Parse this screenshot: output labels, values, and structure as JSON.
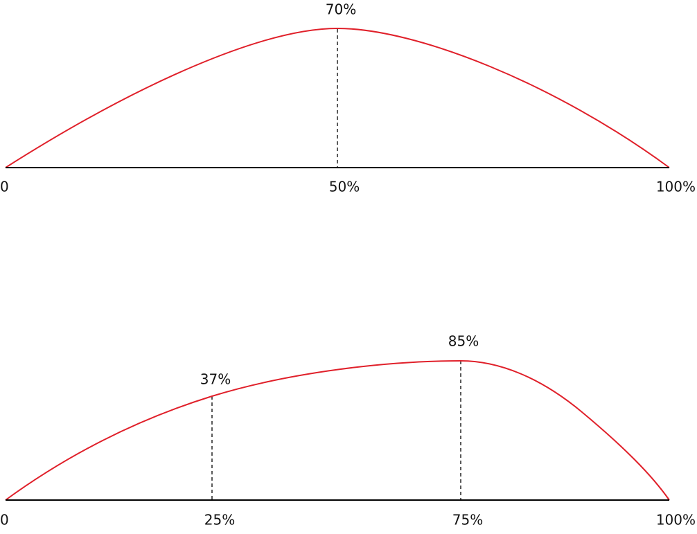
{
  "diagrams": [
    {
      "peak_labels": [
        "70%"
      ],
      "axis_labels": [
        "0",
        "50%",
        "100%"
      ]
    },
    {
      "peak_labels": [
        "37%",
        "85%"
      ],
      "axis_labels": [
        "0",
        "25%",
        "75%",
        "100%"
      ]
    }
  ]
}
